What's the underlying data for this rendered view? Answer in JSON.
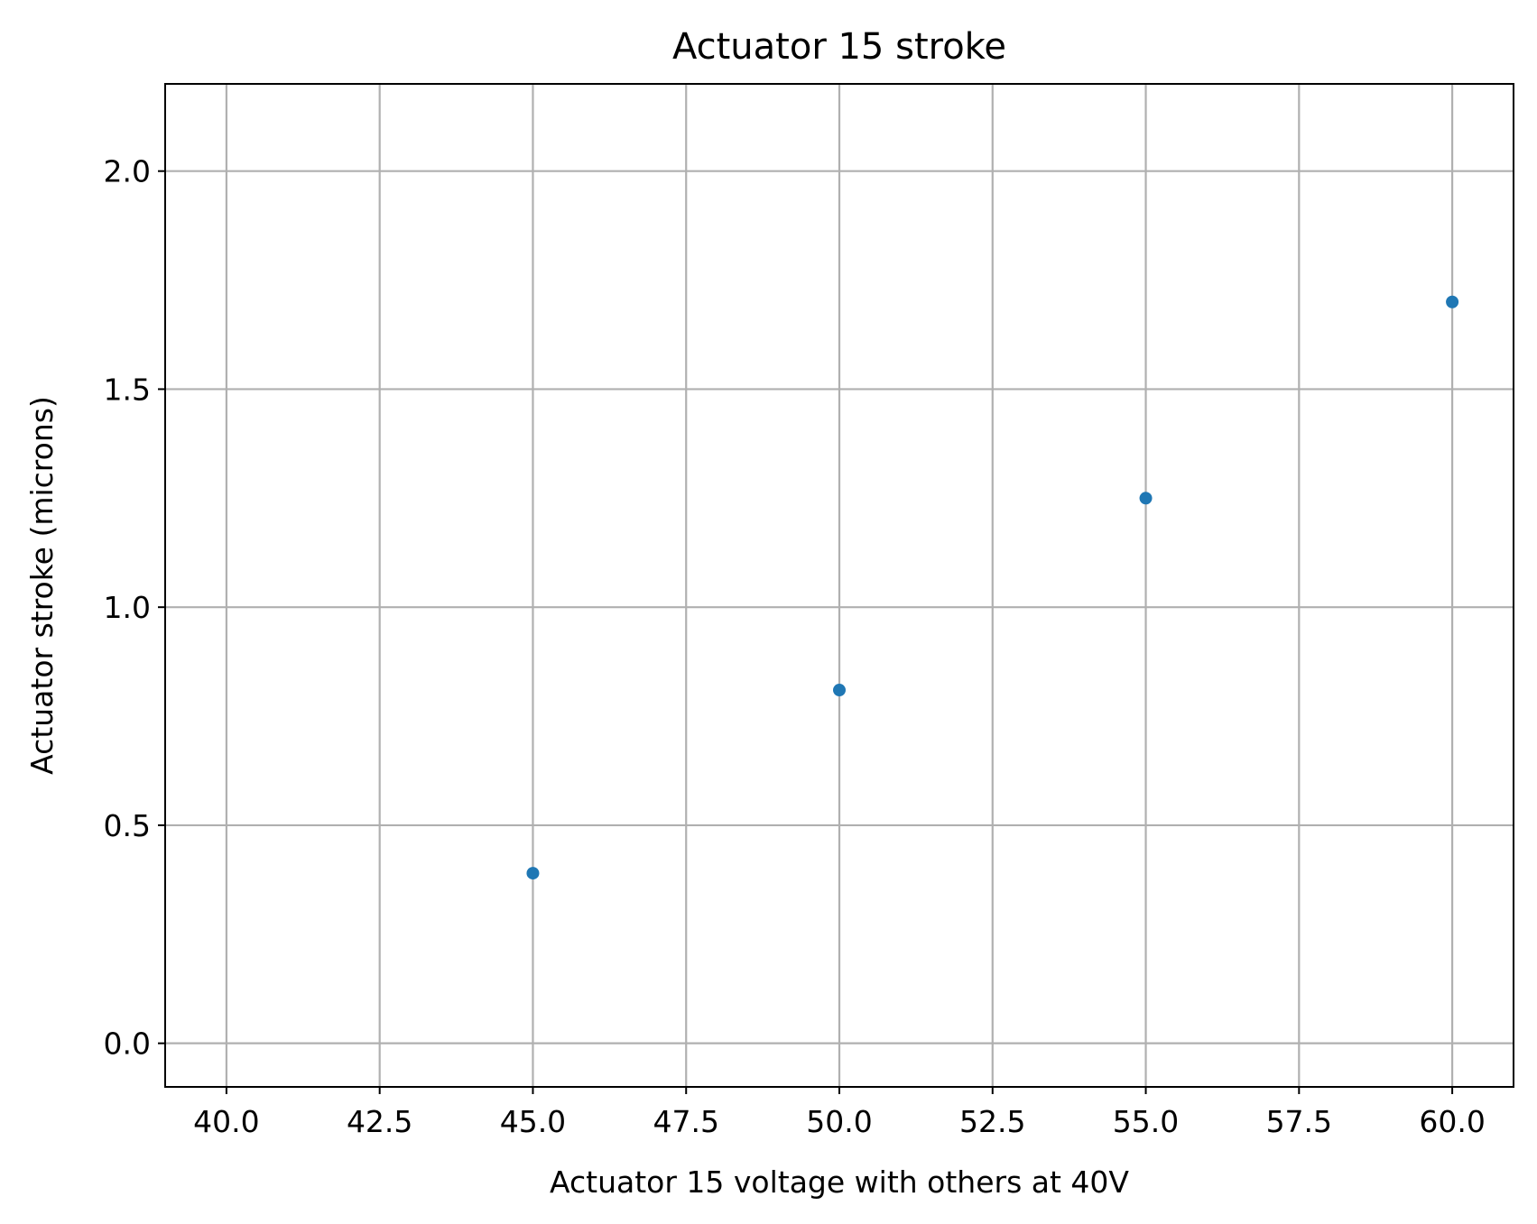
{
  "chart_data": {
    "type": "scatter",
    "title": "Actuator 15 stroke",
    "xlabel": "Actuator 15 voltage with others at 40V",
    "ylabel": "Actuator stroke (microns)",
    "xlim": [
      39.0,
      61.0
    ],
    "ylim": [
      -0.1,
      2.2
    ],
    "xticks": [
      40.0,
      42.5,
      45.0,
      47.5,
      50.0,
      52.5,
      55.0,
      57.5,
      60.0
    ],
    "xtick_labels": [
      "40.0",
      "42.5",
      "45.0",
      "47.5",
      "50.0",
      "52.5",
      "55.0",
      "57.5",
      "60.0"
    ],
    "yticks": [
      0.0,
      0.5,
      1.0,
      1.5,
      2.0
    ],
    "ytick_labels": [
      "0.0",
      "0.5",
      "1.0",
      "1.5",
      "2.0"
    ],
    "grid": true,
    "series": [
      {
        "x": [
          45,
          50,
          55,
          60
        ],
        "y": [
          0.39,
          0.81,
          1.25,
          1.7
        ],
        "color": "#1f77b4"
      }
    ]
  }
}
